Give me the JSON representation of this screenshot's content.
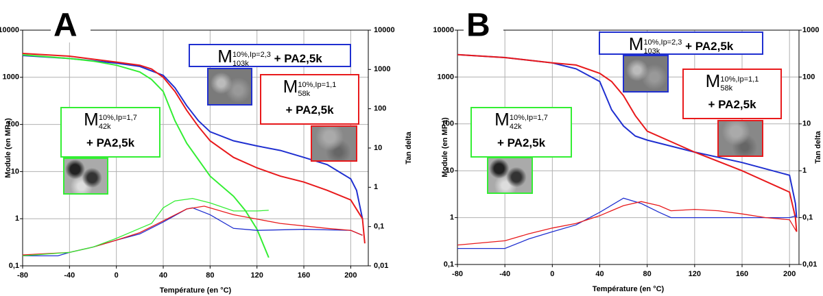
{
  "chart_data": [
    {
      "type": "line",
      "panel_label": "A",
      "x_label": "Température (en °C)",
      "y_label": "Module (en MPa)",
      "y2_label": "Tan delta",
      "log_y": true,
      "grid": true,
      "xlim": [
        -80,
        215
      ],
      "xticks": [
        -80,
        -40,
        0,
        40,
        80,
        120,
        160,
        200
      ],
      "ylim": [
        0.1,
        10000
      ],
      "yticks": [
        {
          "value": 0.1,
          "label": "0,1"
        },
        1,
        10,
        100,
        1000,
        10000
      ],
      "y2lim": [
        0.01,
        10000
      ],
      "y2ticks": [
        {
          "value": 0.01,
          "label": "0,01"
        },
        {
          "value": 0.1,
          "label": "0,1"
        },
        1,
        10,
        100,
        1000,
        10000
      ],
      "series": [
        {
          "color": "#1f2fd0",
          "x": [
            -80,
            -40,
            0,
            20,
            40,
            50,
            60,
            70,
            80,
            100,
            120,
            140,
            160,
            180,
            200,
            205,
            210
          ],
          "values": [
            2900,
            2500,
            2000,
            1700,
            1100,
            600,
            250,
            120,
            70,
            45,
            35,
            28,
            20,
            14,
            7,
            4,
            1
          ]
        },
        {
          "color": "#e8191b",
          "x": [
            -80,
            -40,
            0,
            20,
            30,
            40,
            50,
            60,
            70,
            80,
            100,
            120,
            140,
            160,
            180,
            200,
            210,
            212
          ],
          "values": [
            3200,
            2800,
            2100,
            1800,
            1500,
            1000,
            500,
            200,
            90,
            45,
            20,
            12,
            8,
            6,
            4,
            2.5,
            1,
            0.3
          ]
        },
        {
          "color": "#33ee33",
          "x": [
            -80,
            -40,
            -20,
            0,
            20,
            30,
            40,
            50,
            60,
            80,
            100,
            110,
            120,
            130
          ],
          "values": [
            3000,
            2500,
            2200,
            1800,
            1300,
            900,
            500,
            120,
            40,
            8,
            3,
            1.5,
            0.6,
            0.15
          ]
        },
        {
          "color": "#1f2fd0",
          "axis": "y2",
          "x": [
            -80,
            -50,
            -40,
            -20,
            0,
            20,
            40,
            60,
            65,
            80,
            100,
            120,
            160,
            200,
            210
          ],
          "values": [
            0.018,
            0.018,
            0.022,
            0.03,
            0.045,
            0.065,
            0.13,
            0.28,
            0.3,
            0.2,
            0.09,
            0.08,
            0.085,
            0.08,
            0.06
          ]
        },
        {
          "color": "#e8191b",
          "axis": "y2",
          "x": [
            -80,
            -40,
            -20,
            0,
            20,
            40,
            60,
            75,
            100,
            140,
            180,
            200,
            210
          ],
          "values": [
            0.019,
            0.022,
            0.03,
            0.045,
            0.07,
            0.14,
            0.28,
            0.33,
            0.2,
            0.12,
            0.09,
            0.08,
            0.06
          ]
        },
        {
          "color": "#33ee33",
          "axis": "y2",
          "x": [
            -80,
            -40,
            -20,
            0,
            20,
            30,
            40,
            50,
            65,
            80,
            100,
            120,
            130
          ],
          "values": [
            0.018,
            0.022,
            0.03,
            0.05,
            0.09,
            0.12,
            0.3,
            0.45,
            0.52,
            0.4,
            0.25,
            0.25,
            0.26
          ]
        }
      ],
      "annotations": [
        {
          "base": "M",
          "sub": "103k",
          "sup": "10%,Ip=2,3",
          "text": "+ PA2,5k",
          "color": "#1f2fd0"
        },
        {
          "base": "M",
          "sub": "58k",
          "sup": "10%,Ip=1,1",
          "text": "+ PA2,5k",
          "color": "#e8191b"
        },
        {
          "base": "M",
          "sub": "42k",
          "sup": "10%,Ip=1,7",
          "text": "+ PA2,5k",
          "color": "#33ee33"
        }
      ]
    },
    {
      "type": "line",
      "panel_label": "B",
      "x_label": "Température (en °C)",
      "y_label": "Module (en MPa)",
      "y2_label": "Tan delta",
      "log_y": true,
      "grid": true,
      "xlim": [
        -80,
        208
      ],
      "xticks": [
        -80,
        -40,
        0,
        40,
        80,
        120,
        160,
        200
      ],
      "ylim": [
        0.1,
        10000
      ],
      "yticks": [
        {
          "value": 0.1,
          "label": "0,1"
        },
        1,
        10,
        100,
        1000,
        10000
      ],
      "y2lim": [
        0.01,
        1000
      ],
      "y2ticks": [
        {
          "value": 0.01,
          "label": "0,01"
        },
        {
          "value": 0.1,
          "label": "0,1"
        },
        1,
        10,
        100,
        1000
      ],
      "series": [
        {
          "color": "#1f2fd0",
          "x": [
            -80,
            -40,
            0,
            20,
            40,
            50,
            60,
            70,
            80,
            120,
            160,
            200,
            205,
            206
          ],
          "values": [
            3000,
            2600,
            2000,
            1500,
            800,
            200,
            90,
            55,
            45,
            25,
            15,
            8,
            2,
            1
          ]
        },
        {
          "color": "#e8191b",
          "x": [
            -80,
            -40,
            0,
            20,
            40,
            50,
            60,
            70,
            80,
            120,
            160,
            200,
            205,
            206
          ],
          "values": [
            3000,
            2600,
            2000,
            1800,
            1200,
            800,
            400,
            150,
            70,
            25,
            10,
            3.5,
            1,
            0.5
          ]
        },
        {
          "color": "#1f2fd0",
          "axis": "y2",
          "x": [
            -80,
            -40,
            -20,
            0,
            20,
            40,
            60,
            75,
            90,
            100,
            120,
            160,
            200,
            206
          ],
          "values": [
            0.022,
            0.022,
            0.035,
            0.05,
            0.07,
            0.13,
            0.26,
            0.2,
            0.13,
            0.1,
            0.1,
            0.1,
            0.1,
            0.11
          ]
        },
        {
          "color": "#e8191b",
          "axis": "y2",
          "x": [
            -80,
            -40,
            -20,
            0,
            20,
            40,
            60,
            75,
            90,
            100,
            120,
            140,
            160,
            180,
            200,
            206
          ],
          "values": [
            0.026,
            0.032,
            0.045,
            0.06,
            0.075,
            0.11,
            0.18,
            0.22,
            0.18,
            0.14,
            0.15,
            0.14,
            0.12,
            0.1,
            0.09,
            0.05
          ]
        }
      ],
      "annotations": [
        {
          "base": "M",
          "sub": "103k",
          "sup": "10%,Ip=2,3",
          "text": "+ PA2,5k",
          "color": "#1f2fd0"
        },
        {
          "base": "M",
          "sub": "58k",
          "sup": "10%,Ip=1,1",
          "text": "+ PA2,5k",
          "color": "#e8191b"
        },
        {
          "base": "M",
          "sub": "42k",
          "sup": "10%,Ip=1,7",
          "text": "+ PA2,5k",
          "color": "#33ee33"
        }
      ]
    }
  ]
}
